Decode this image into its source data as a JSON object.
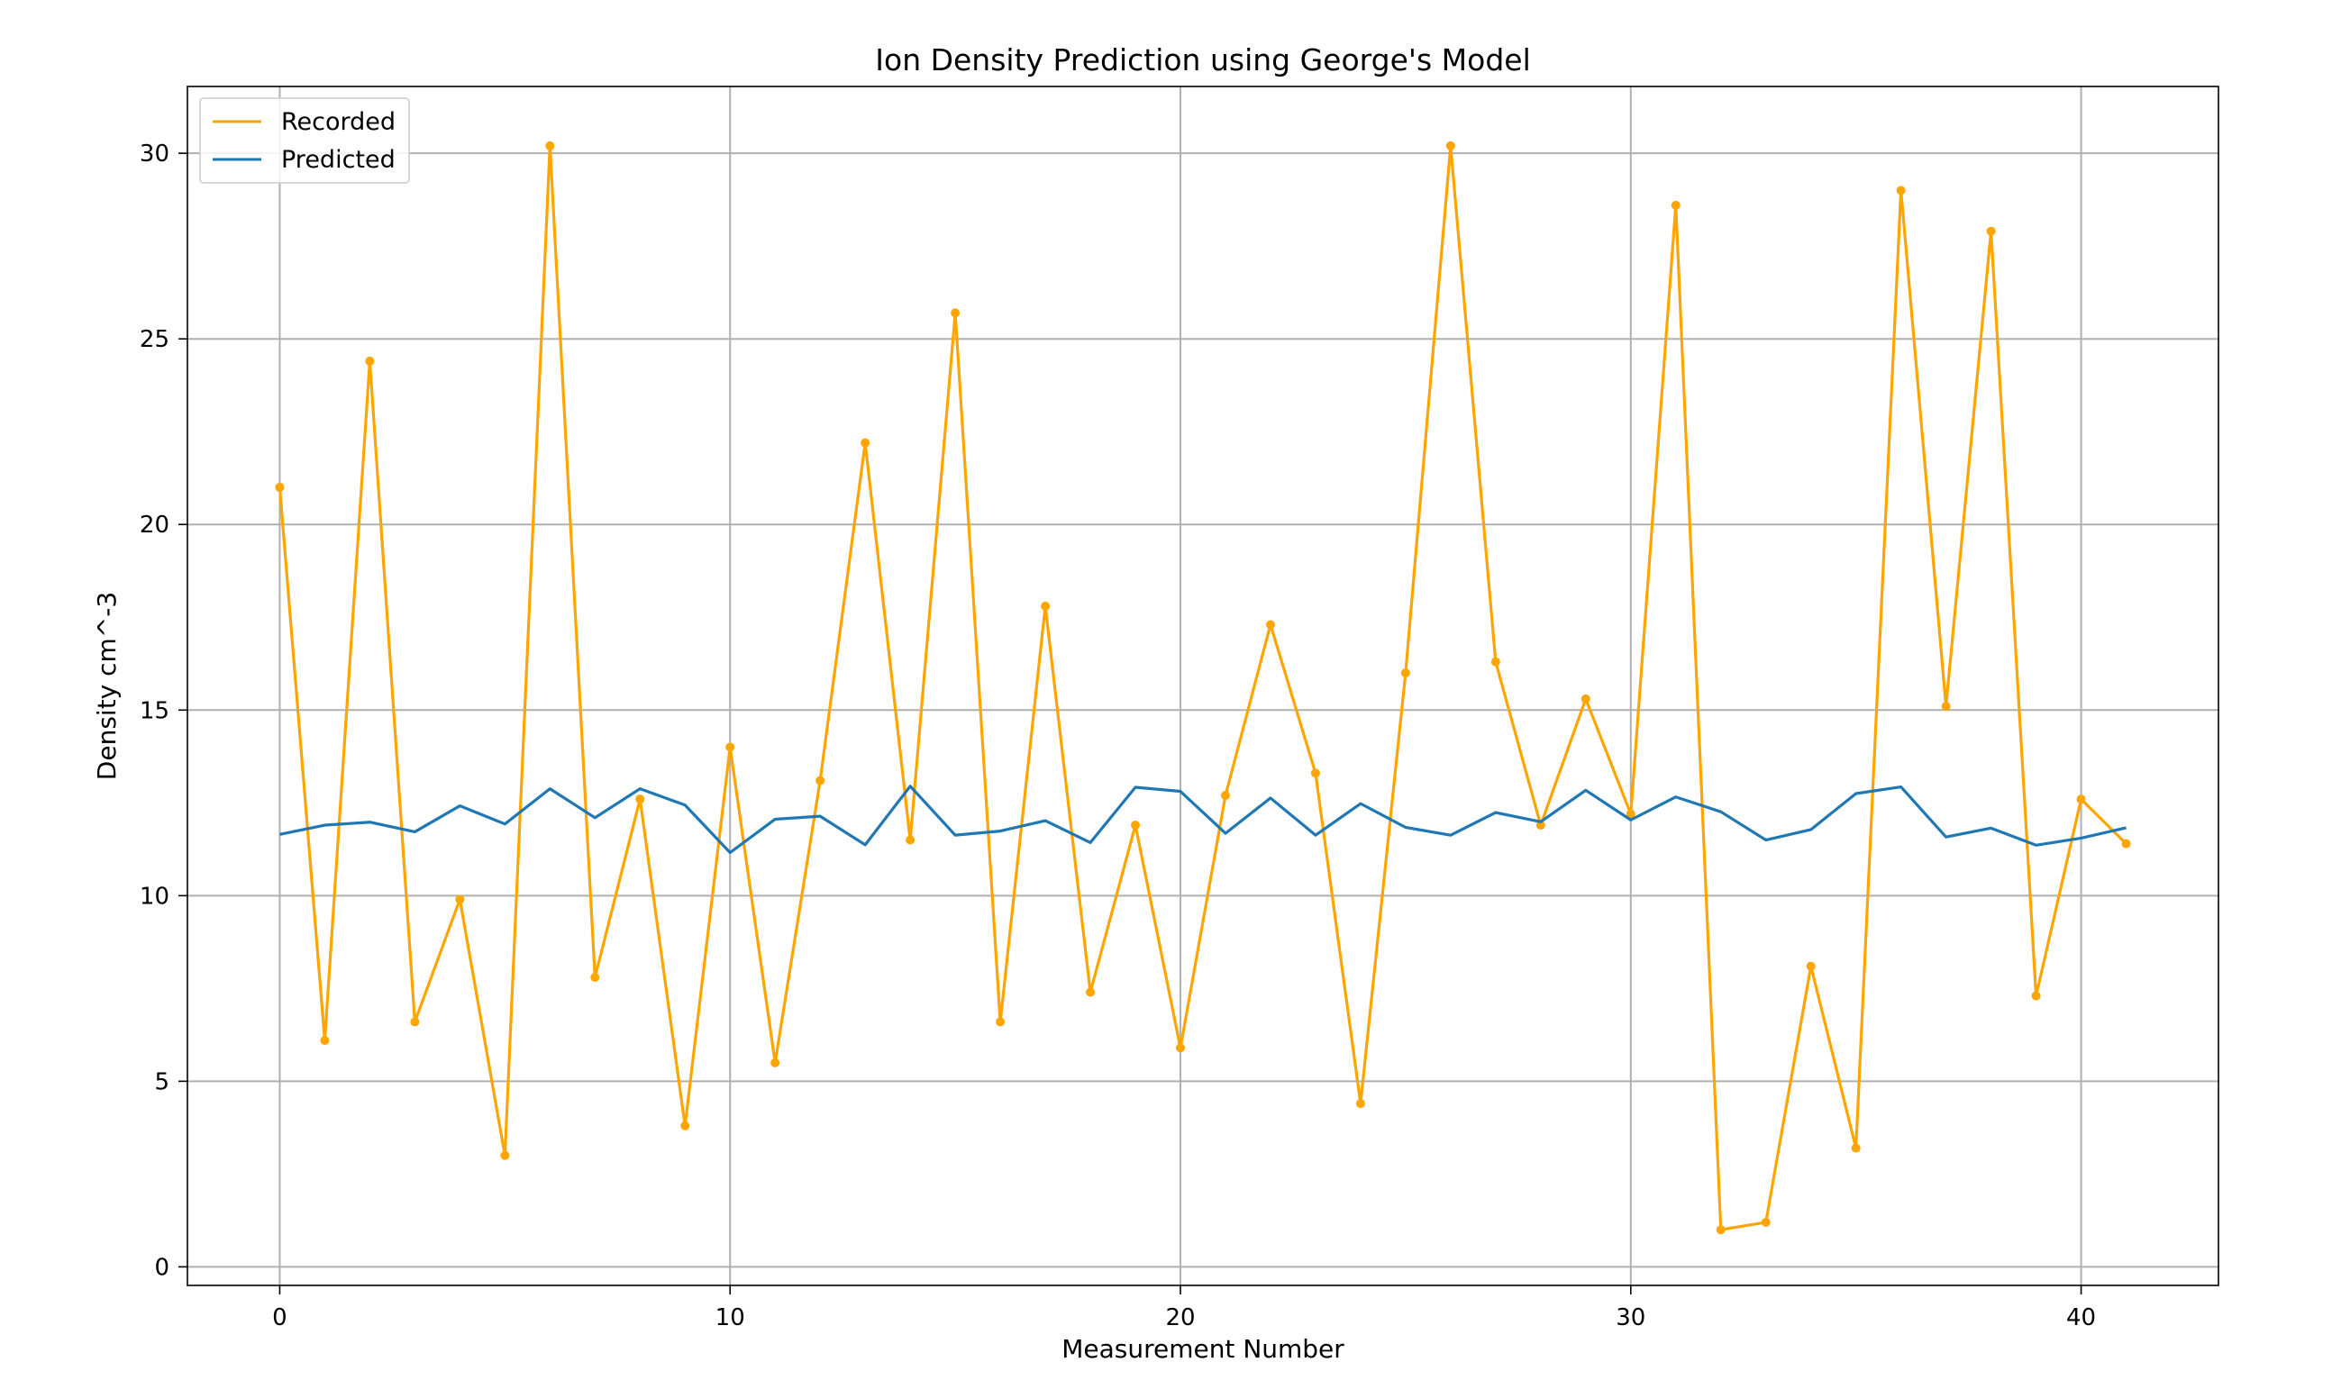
{
  "chart_data": {
    "type": "line",
    "title": "Ion Density Prediction using George's Model",
    "xlabel": "Measurement Number",
    "ylabel": "Density cm^-3",
    "xlim": [
      -2.05,
      43.05
    ],
    "ylim": [
      -0.5,
      31.8
    ],
    "xticks": [
      0,
      10,
      20,
      30,
      40
    ],
    "yticks": [
      0,
      5,
      10,
      15,
      20,
      25,
      30
    ],
    "grid": true,
    "legend_position": "upper-left",
    "x": [
      0,
      1,
      2,
      3,
      4,
      5,
      6,
      7,
      8,
      9,
      10,
      11,
      12,
      13,
      14,
      15,
      16,
      17,
      18,
      19,
      20,
      21,
      22,
      23,
      24,
      25,
      26,
      27,
      28,
      29,
      30,
      31,
      32,
      33,
      34,
      35,
      36,
      37,
      38,
      39,
      40,
      41
    ],
    "series": [
      {
        "name": "Recorded",
        "color": "#FFA500",
        "markers": true,
        "values": [
          21.0,
          6.1,
          24.4,
          6.6,
          9.9,
          3.0,
          30.2,
          7.8,
          12.6,
          3.8,
          14.0,
          5.5,
          13.1,
          22.2,
          11.5,
          25.7,
          6.6,
          17.8,
          7.4,
          11.9,
          5.9,
          12.7,
          17.3,
          13.3,
          4.4,
          16.0,
          30.2,
          16.3,
          11.9,
          15.3,
          12.2,
          28.6,
          1.0,
          1.2,
          8.1,
          3.2,
          29.0,
          15.1,
          27.9,
          7.3,
          12.6,
          11.4
        ]
      },
      {
        "name": "Predicted",
        "color": "#1F77B4",
        "markers": false,
        "values": [
          11.65,
          11.9,
          11.98,
          11.72,
          12.42,
          11.93,
          12.88,
          12.1,
          12.88,
          12.44,
          11.16,
          12.06,
          12.14,
          11.37,
          12.95,
          11.63,
          11.74,
          12.02,
          11.43,
          12.92,
          12.81,
          11.68,
          12.63,
          11.63,
          12.48,
          11.84,
          11.63,
          12.24,
          11.99,
          12.84,
          12.04,
          12.66,
          12.26,
          11.5,
          11.78,
          12.75,
          12.93,
          11.58,
          11.82,
          11.36,
          11.55,
          11.83
        ]
      }
    ]
  }
}
